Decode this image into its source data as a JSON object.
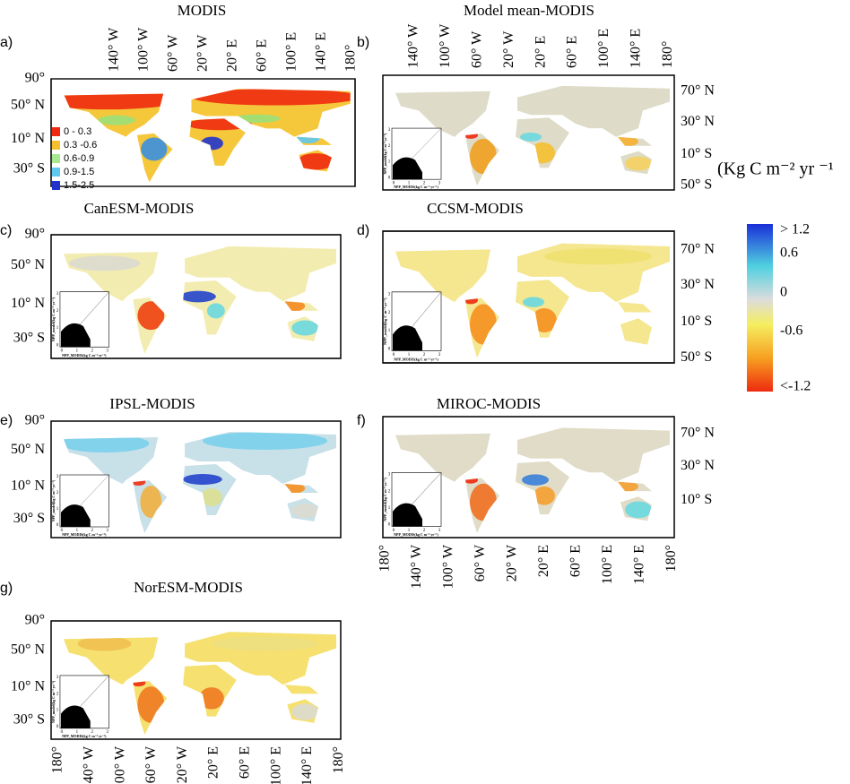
{
  "panels": [
    {
      "letter": "a)",
      "title": "MODIS"
    },
    {
      "letter": "b)",
      "title": "Model mean-MODIS"
    },
    {
      "letter": "c)",
      "title": "CanESM-MODIS"
    },
    {
      "letter": "d)",
      "title": "CCSM-MODIS"
    },
    {
      "letter": "e)",
      "title": "IPSL-MODIS"
    },
    {
      "letter": "f)",
      "title": "MIROC-MODIS"
    },
    {
      "letter": "g)",
      "title": "NorESM-MODIS"
    }
  ],
  "longitude_labels_top": [
    "140° W",
    "100° W",
    "60° W",
    "20° W",
    "20° E",
    "60° E",
    "100° E",
    "140° E",
    "180°"
  ],
  "longitude_labels_bottom": [
    "180°",
    "140° W",
    "100° W",
    "60° W",
    "20° W",
    "20° E",
    "60° E",
    "100° E",
    "140° E",
    "180°"
  ],
  "latitude_labels_left": [
    "90°",
    "50° N",
    "10° N",
    "30° S"
  ],
  "latitude_labels_right": [
    "70° N",
    "30° N",
    "10° S",
    "50° S"
  ],
  "legend": [
    "0 - 0.3",
    "0.3 -0.6",
    "0.6-0.9",
    "0.9-1.5",
    "1.5-2.5"
  ],
  "inset": {
    "x_label": "NPP_MODIS(kg C m⁻² yr⁻¹)",
    "y_label": "NPP_model(kg C m⁻² yr⁻¹)",
    "ticks": [
      "0",
      "1",
      "2",
      "3"
    ]
  },
  "colorbar": {
    "unit": "(Kg C m⁻² yr ⁻¹",
    "labels": [
      "> 1.2",
      "0.6",
      "0",
      "-0.6",
      "<-1.2"
    ]
  }
}
